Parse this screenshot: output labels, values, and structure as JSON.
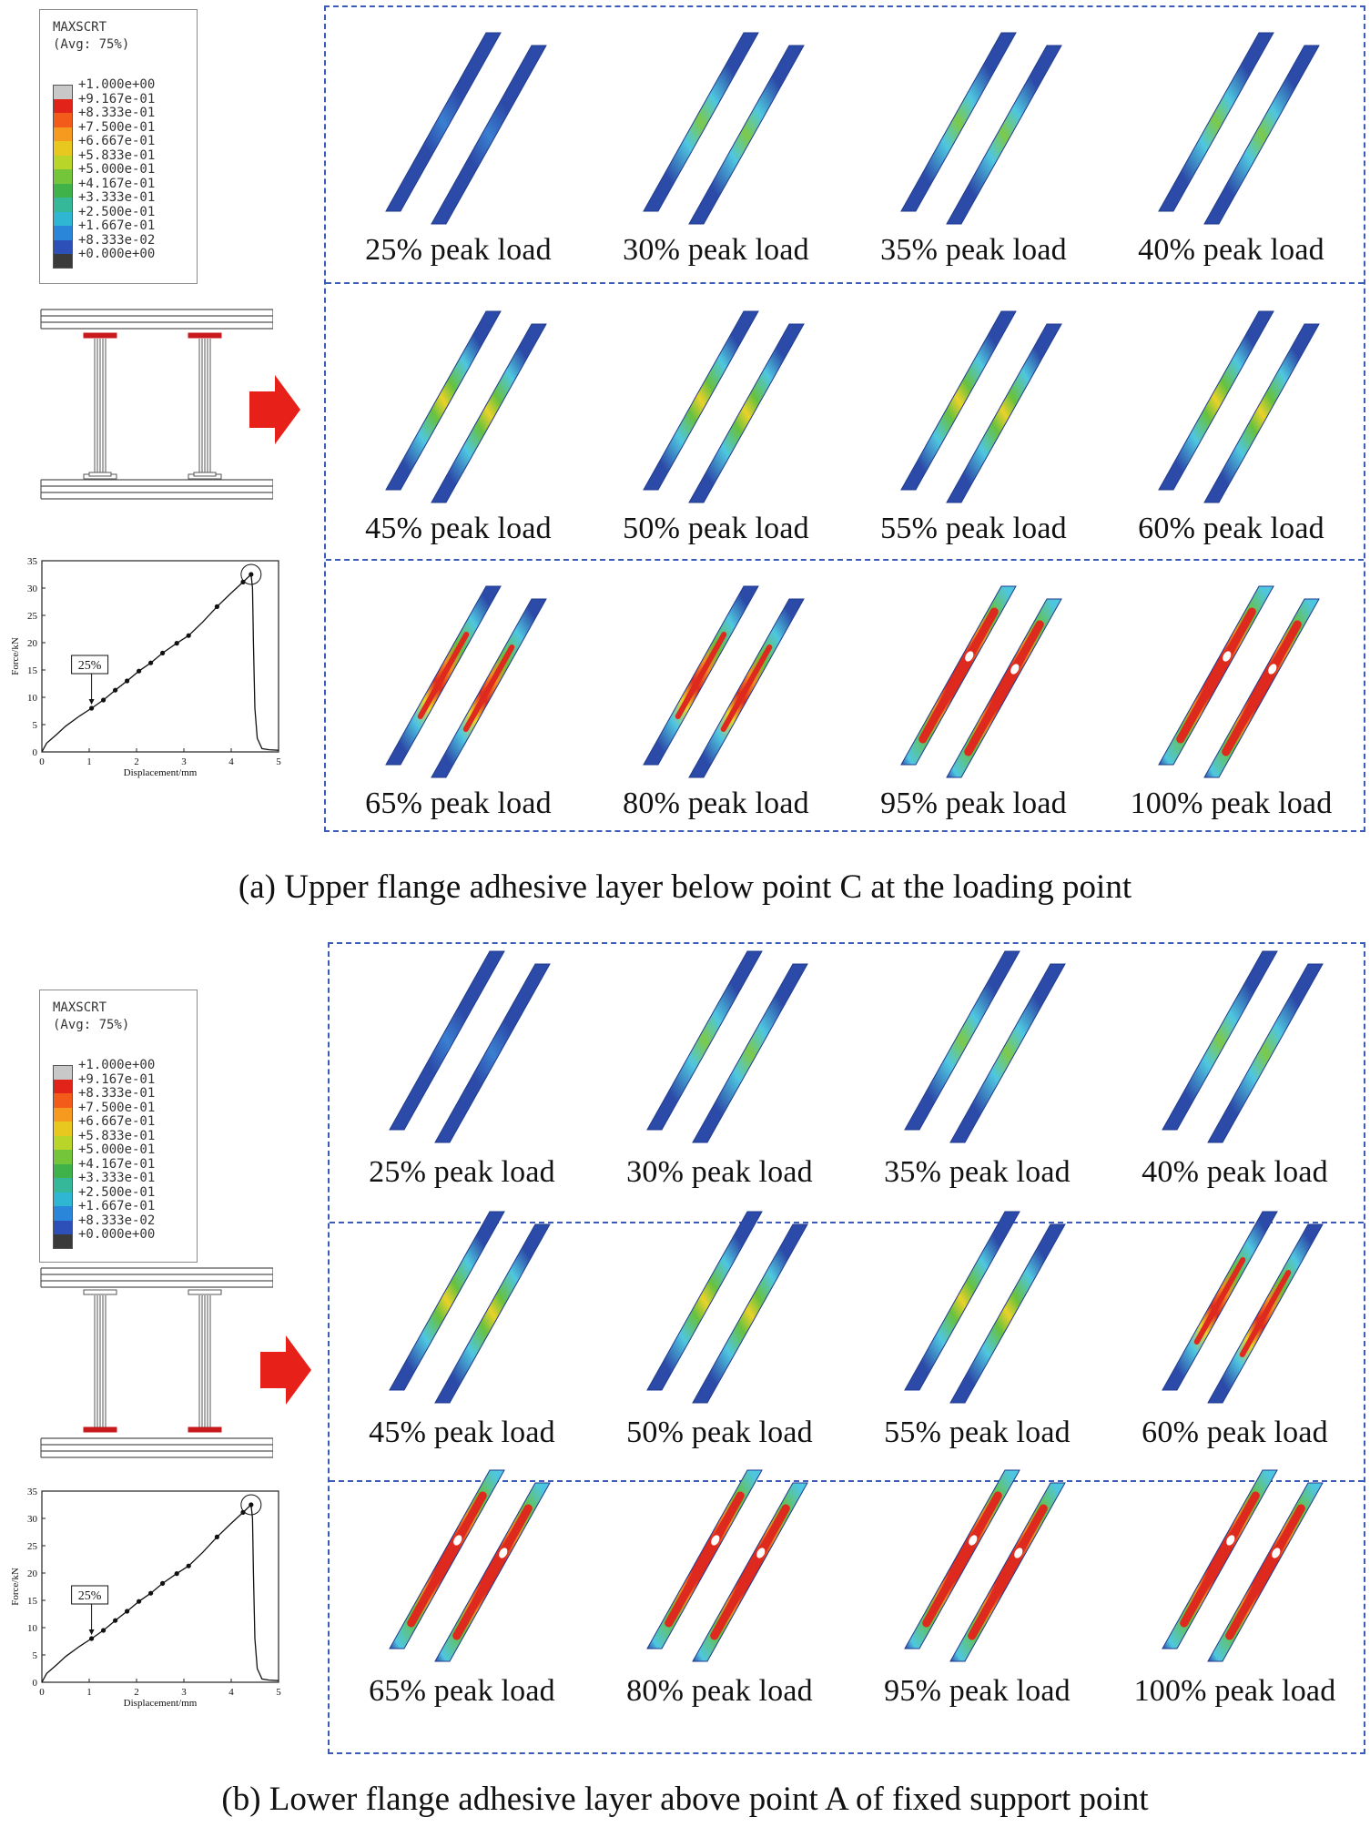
{
  "legend": {
    "title_line1": "MAXSCRT",
    "title_line2": "(Avg: 75%)",
    "entries": [
      {
        "value": "+1.000e+00",
        "color": "#c8c8c8"
      },
      {
        "value": "+9.167e-01",
        "color": "#e2231a"
      },
      {
        "value": "+8.333e-01",
        "color": "#f25b1a"
      },
      {
        "value": "+7.500e-01",
        "color": "#f59a1e"
      },
      {
        "value": "+6.667e-01",
        "color": "#e8c81f"
      },
      {
        "value": "+5.833e-01",
        "color": "#b9d52a"
      },
      {
        "value": "+5.000e-01",
        "color": "#74c53a"
      },
      {
        "value": "+4.167e-01",
        "color": "#3fb24a"
      },
      {
        "value": "+3.333e-01",
        "color": "#35b89a"
      },
      {
        "value": "+2.500e-01",
        "color": "#2fb6d3"
      },
      {
        "value": "+1.667e-01",
        "color": "#2a86d8"
      },
      {
        "value": "+8.333e-02",
        "color": "#2c4fb8"
      },
      {
        "value": "+0.000e+00",
        "color": "#3a3a3a"
      }
    ]
  },
  "plot": {
    "ylabel": "Force/kN",
    "xlabel": "Displacement/mm",
    "x_ticks": [
      "0",
      "1",
      "2",
      "3",
      "4",
      "5"
    ],
    "y_ticks": [
      "0",
      "5",
      "10",
      "15",
      "20",
      "25",
      "30",
      "35"
    ],
    "annotation": "25%",
    "xlim": [
      0,
      5
    ],
    "ylim": [
      0,
      35
    ],
    "curve": [
      [
        0,
        0
      ],
      [
        0.1,
        1.6
      ],
      [
        0.3,
        3.1
      ],
      [
        0.5,
        4.7
      ],
      [
        0.8,
        6.6
      ],
      [
        1.05,
        8.0
      ],
      [
        1.3,
        9.5
      ],
      [
        1.55,
        11.3
      ],
      [
        1.8,
        13.0
      ],
      [
        2.05,
        14.8
      ],
      [
        2.3,
        16.3
      ],
      [
        2.55,
        18.1
      ],
      [
        2.85,
        19.9
      ],
      [
        3.1,
        21.3
      ],
      [
        3.4,
        23.8
      ],
      [
        3.7,
        26.6
      ],
      [
        4.0,
        29.1
      ],
      [
        4.25,
        31.1
      ],
      [
        4.42,
        32.5
      ],
      [
        4.45,
        30.0
      ],
      [
        4.47,
        20.0
      ],
      [
        4.5,
        8.0
      ],
      [
        4.55,
        2.5
      ],
      [
        4.65,
        0.6
      ],
      [
        4.8,
        0.4
      ],
      [
        5.0,
        0.3
      ]
    ],
    "markers": [
      [
        1.05,
        8.0
      ],
      [
        1.3,
        9.5
      ],
      [
        1.55,
        11.3
      ],
      [
        1.8,
        13.0
      ],
      [
        2.05,
        14.8
      ],
      [
        2.3,
        16.3
      ],
      [
        2.55,
        18.1
      ],
      [
        2.85,
        19.9
      ],
      [
        3.1,
        21.3
      ],
      [
        3.7,
        26.6
      ],
      [
        4.25,
        31.1
      ],
      [
        4.42,
        32.5
      ]
    ]
  },
  "colormap": {
    "dark_blue": "#2c4aa8",
    "edge_blue": "#1f3a8f",
    "cyan": "#4fc6e0",
    "green": "#67c13f",
    "yellow": "#e9d22a",
    "orange": "#f28c22",
    "red": "#de2a1e",
    "arrow_red": "#e8201a",
    "grid_blue": "#3a5bb8",
    "flange_red": "#c8191c"
  },
  "panel_a": {
    "caption": "(a) Upper flange adhesive layer below point C at the loading point",
    "labels": [
      "25% peak load",
      "30% peak load",
      "35% peak load",
      "40% peak load",
      "45% peak load",
      "50% peak load",
      "55% peak load",
      "60% peak load",
      "65% peak load",
      "80% peak load",
      "95% peak load",
      "100% peak load"
    ],
    "stage": [
      0.05,
      0.12,
      0.18,
      0.26,
      0.36,
      0.42,
      0.48,
      0.55,
      0.65,
      0.74,
      0.9,
      1.0
    ]
  },
  "panel_b": {
    "caption": "(b) Lower flange adhesive layer above point A of fixed support point",
    "labels": [
      "25% peak load",
      "30% peak load",
      "35% peak load",
      "40% peak load",
      "45% peak load",
      "50% peak load",
      "55% peak load",
      "60% peak load",
      "65% peak load",
      "80% peak load",
      "95% peak load",
      "100% peak load"
    ],
    "stage": [
      0.06,
      0.1,
      0.16,
      0.22,
      0.34,
      0.42,
      0.5,
      0.7,
      0.9,
      0.92,
      0.96,
      1.0
    ]
  }
}
